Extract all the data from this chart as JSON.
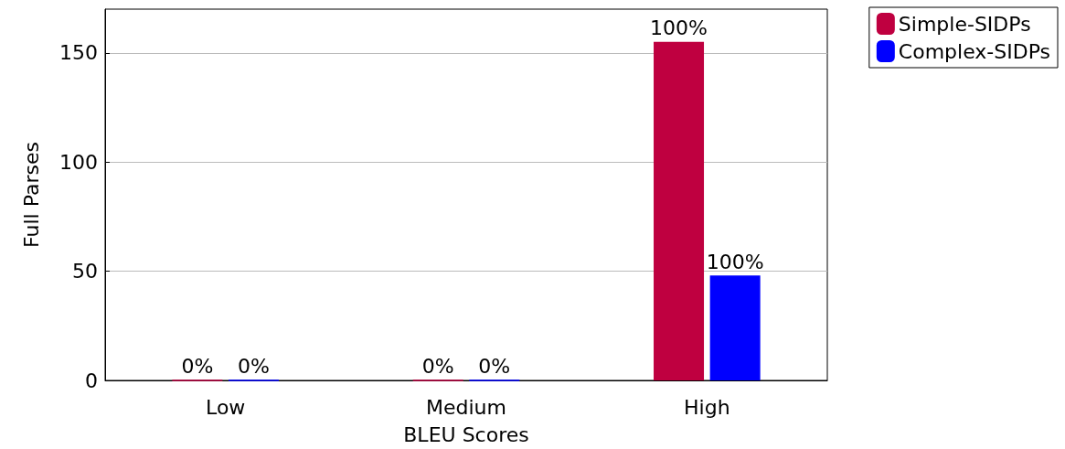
{
  "chart_data": {
    "type": "bar",
    "xlabel": "BLEU Scores",
    "ylabel": "Full Parses",
    "categories": [
      "Low",
      "Medium",
      "High"
    ],
    "series": [
      {
        "name": "Simple-SIDPs",
        "color": "#bf0040",
        "values": [
          0,
          0,
          155
        ],
        "value_labels": [
          "0%",
          "0%",
          null
        ]
      },
      {
        "name": "Complex-SIDPs",
        "color": "#0000ff",
        "values": [
          0,
          0,
          48
        ],
        "value_labels": [
          "0%",
          "0%",
          null
        ]
      }
    ],
    "annotations": [
      {
        "text": "100%",
        "x": "High",
        "y": 155
      },
      {
        "text": "100%",
        "x": "High",
        "y": 48
      }
    ],
    "ylim": [
      0,
      170
    ],
    "yticks": [
      0,
      50,
      100,
      150
    ],
    "grid": "y",
    "legend": "top right"
  }
}
